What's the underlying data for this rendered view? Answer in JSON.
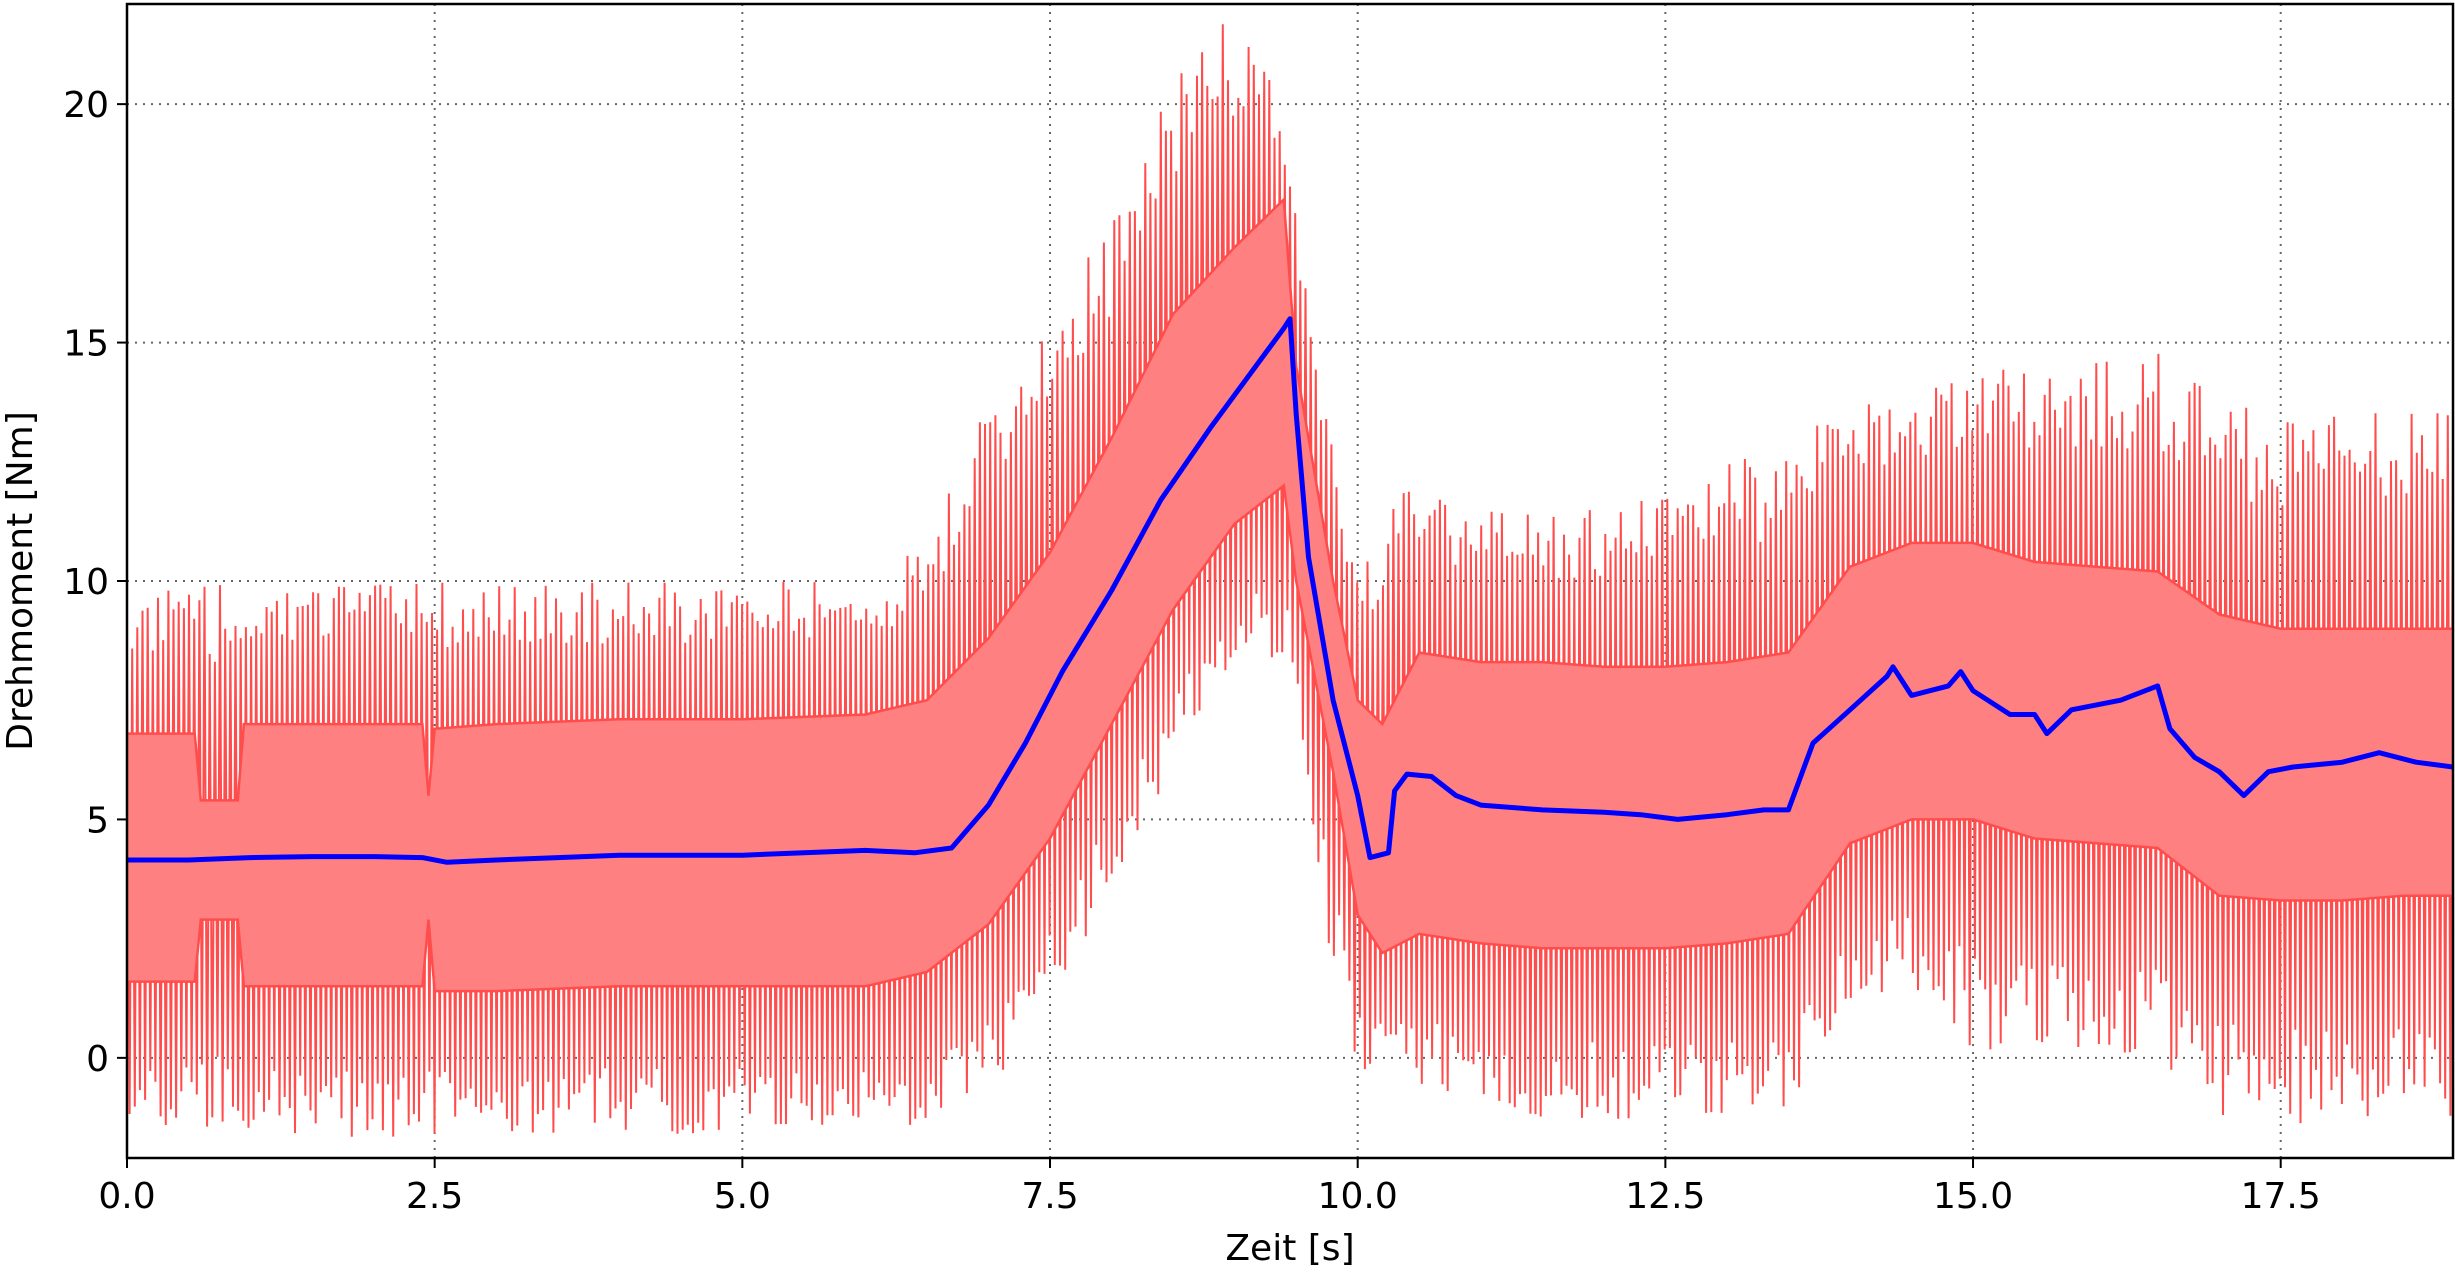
{
  "chart_data": {
    "type": "line",
    "title": "",
    "xlabel": "Zeit [s]",
    "ylabel": "Drehmoment [Nm]",
    "xlim": [
      0,
      18.9
    ],
    "ylim": [
      -2.1,
      22.1
    ],
    "xticks": [
      0,
      2.5,
      5,
      7.5,
      10,
      12.5,
      15,
      17.5
    ],
    "xtick_labels": [
      "0.0",
      "2.5",
      "5.0",
      "7.5",
      "10.0",
      "12.5",
      "15.0",
      "17.5"
    ],
    "yticks": [
      0,
      5,
      10,
      15,
      20
    ],
    "ytick_labels": [
      "0",
      "5",
      "10",
      "15",
      "20"
    ],
    "grid": true,
    "grid_style": "dotted",
    "legend": "none",
    "colors": {
      "mean": "#0000ff",
      "band_fill": "#ff8080",
      "band_edge": "#ff4d4d"
    },
    "series": [
      {
        "role": "mean",
        "x": [
          0,
          0.5,
          1.0,
          1.5,
          2.0,
          2.4,
          2.6,
          3.0,
          3.5,
          4.0,
          4.5,
          5.0,
          5.5,
          6.0,
          6.4,
          6.7,
          7.0,
          7.3,
          7.6,
          8.0,
          8.4,
          8.8,
          9.2,
          9.4,
          9.45,
          9.5,
          9.6,
          9.8,
          10.0,
          10.1,
          10.25,
          10.3,
          10.4,
          10.6,
          10.8,
          11.0,
          11.5,
          12.0,
          12.3,
          12.6,
          13.0,
          13.3,
          13.5,
          13.7,
          14.0,
          14.3,
          14.35,
          14.5,
          14.8,
          14.9,
          15.0,
          15.3,
          15.5,
          15.6,
          15.8,
          16.2,
          16.5,
          16.6,
          16.8,
          17.0,
          17.2,
          17.4,
          17.6,
          18.0,
          18.3,
          18.6,
          18.9
        ],
        "y": [
          4.15,
          4.15,
          4.2,
          4.22,
          4.22,
          4.2,
          4.1,
          4.15,
          4.2,
          4.25,
          4.25,
          4.25,
          4.3,
          4.35,
          4.3,
          4.4,
          5.3,
          6.6,
          8.1,
          9.8,
          11.7,
          13.2,
          14.6,
          15.3,
          15.5,
          13.5,
          10.5,
          7.5,
          5.5,
          4.2,
          4.3,
          5.6,
          5.95,
          5.9,
          5.5,
          5.3,
          5.2,
          5.15,
          5.1,
          5.0,
          5.1,
          5.2,
          5.2,
          6.6,
          7.3,
          8.0,
          8.2,
          7.6,
          7.8,
          8.1,
          7.7,
          7.2,
          7.2,
          6.8,
          7.3,
          7.5,
          7.8,
          6.9,
          6.3,
          6.0,
          5.5,
          6.0,
          6.1,
          6.2,
          6.4,
          6.2,
          6.1
        ]
      },
      {
        "role": "band-upper",
        "x": [
          0,
          0.55,
          0.6,
          0.9,
          0.95,
          2.4,
          2.45,
          2.5,
          3.0,
          4.0,
          5.0,
          6.0,
          6.5,
          7.0,
          7.5,
          8.0,
          8.5,
          9.0,
          9.4,
          9.5,
          9.8,
          10.0,
          10.2,
          10.5,
          11.0,
          11.5,
          12.0,
          12.5,
          13.0,
          13.5,
          14.0,
          14.5,
          15.0,
          15.5,
          16.0,
          16.5,
          17.0,
          17.5,
          18.0,
          18.5,
          18.9
        ],
        "y": [
          6.8,
          6.8,
          5.4,
          5.4,
          7.0,
          7.0,
          5.5,
          6.9,
          7.0,
          7.1,
          7.1,
          7.2,
          7.5,
          8.8,
          10.6,
          13.0,
          15.6,
          17.0,
          18.0,
          14.5,
          10.0,
          7.5,
          7.0,
          8.5,
          8.3,
          8.3,
          8.2,
          8.2,
          8.3,
          8.5,
          10.3,
          10.8,
          10.8,
          10.4,
          10.3,
          10.2,
          9.3,
          9.0,
          9.0,
          9.0,
          9.0
        ]
      },
      {
        "role": "band-lower",
        "x": [
          0,
          0.55,
          0.6,
          0.9,
          0.95,
          2.4,
          2.45,
          2.5,
          3.0,
          4.0,
          5.0,
          6.0,
          6.5,
          7.0,
          7.5,
          8.0,
          8.5,
          9.0,
          9.4,
          9.5,
          9.8,
          10.0,
          10.2,
          10.5,
          11.0,
          11.5,
          12.0,
          12.5,
          13.0,
          13.5,
          14.0,
          14.5,
          15.0,
          15.5,
          16.0,
          16.5,
          17.0,
          17.5,
          18.0,
          18.5,
          18.9
        ],
        "y": [
          1.6,
          1.6,
          2.9,
          2.9,
          1.5,
          1.5,
          2.9,
          1.4,
          1.4,
          1.5,
          1.5,
          1.5,
          1.8,
          2.8,
          4.6,
          7.0,
          9.4,
          11.2,
          12.0,
          10.0,
          6.0,
          3.0,
          2.2,
          2.6,
          2.4,
          2.3,
          2.3,
          2.3,
          2.4,
          2.6,
          4.5,
          5.0,
          5.0,
          4.6,
          4.5,
          4.4,
          3.4,
          3.3,
          3.3,
          3.4,
          3.4
        ]
      },
      {
        "role": "envelope-max",
        "x": [
          0,
          0.6,
          0.9,
          2.4,
          2.5,
          6.0,
          6.5,
          7.0,
          7.5,
          8.0,
          8.5,
          9.0,
          9.2,
          9.5,
          9.7,
          10.0,
          10.3,
          11.0,
          12.0,
          13.0,
          13.5,
          14.0,
          14.5,
          15.0,
          15.5,
          16.0,
          16.5,
          17.0,
          17.5,
          18.0,
          18.9
        ],
        "y": [
          9.9,
          9.9,
          10.0,
          10.0,
          10.0,
          10.0,
          11.0,
          14.0,
          16.2,
          17.5,
          20.8,
          22.0,
          21.5,
          18.0,
          14.0,
          10.5,
          12.0,
          11.5,
          11.5,
          12.5,
          13.0,
          13.8,
          14.0,
          14.5,
          14.5,
          14.6,
          14.8,
          13.8,
          13.6,
          13.7,
          13.7
        ]
      },
      {
        "role": "envelope-min",
        "x": [
          0,
          0.6,
          0.9,
          2.4,
          2.5,
          6.0,
          6.5,
          7.0,
          7.5,
          8.0,
          8.5,
          9.0,
          9.5,
          9.7,
          10.0,
          10.3,
          11.0,
          12.0,
          13.0,
          13.5,
          14.0,
          14.5,
          15.0,
          15.5,
          16.0,
          16.5,
          17.0,
          17.5,
          18.0,
          18.9
        ],
        "y": [
          -1.6,
          -1.6,
          -1.6,
          -1.7,
          -1.6,
          -1.6,
          -1.5,
          -0.8,
          1.2,
          3.5,
          6.0,
          8.5,
          8.0,
          3.0,
          -0.5,
          -0.3,
          -1.2,
          -1.3,
          -1.4,
          -1.0,
          0.8,
          1.5,
          0.0,
          0.2,
          0.0,
          -0.2,
          -1.5,
          -1.4,
          -1.4,
          -1.3
        ]
      }
    ]
  }
}
